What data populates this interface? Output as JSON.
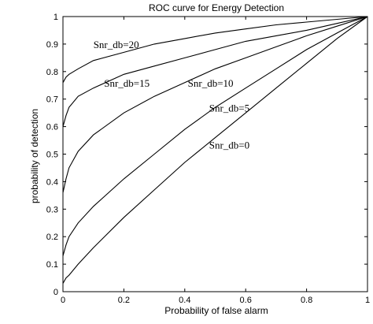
{
  "chart_data": {
    "type": "line",
    "title": "ROC curve for Energy Detection",
    "xlabel": "Probability of false alarm",
    "ylabel": "probability of detection",
    "xlim": [
      0,
      1
    ],
    "ylim": [
      0,
      1
    ],
    "xticks": [
      "0",
      "0.2",
      "0.4",
      "0.6",
      "0.8",
      "1"
    ],
    "yticks": [
      "0",
      "0.1",
      "0.2",
      "0.3",
      "0.4",
      "0.5",
      "0.6",
      "0.7",
      "0.8",
      "0.9",
      "1"
    ],
    "grid": false,
    "legend": "none",
    "series": [
      {
        "name": "Snr_db=20",
        "x": [
          0,
          0.01,
          0.02,
          0.05,
          0.1,
          0.2,
          0.3,
          0.4,
          0.5,
          0.6,
          0.7,
          0.8,
          0.9,
          1
        ],
        "y": [
          0.76,
          0.78,
          0.79,
          0.81,
          0.84,
          0.87,
          0.9,
          0.92,
          0.94,
          0.955,
          0.97,
          0.98,
          0.99,
          1
        ]
      },
      {
        "name": "Snr_db=15",
        "x": [
          0,
          0.01,
          0.02,
          0.05,
          0.1,
          0.2,
          0.3,
          0.4,
          0.5,
          0.6,
          0.7,
          0.8,
          0.9,
          1
        ],
        "y": [
          0.6,
          0.64,
          0.67,
          0.71,
          0.74,
          0.79,
          0.82,
          0.85,
          0.88,
          0.91,
          0.93,
          0.95,
          0.975,
          1
        ]
      },
      {
        "name": "Snr_db=10",
        "x": [
          0,
          0.01,
          0.02,
          0.05,
          0.1,
          0.2,
          0.3,
          0.4,
          0.5,
          0.6,
          0.7,
          0.8,
          0.9,
          1
        ],
        "y": [
          0.36,
          0.41,
          0.45,
          0.51,
          0.57,
          0.65,
          0.71,
          0.76,
          0.81,
          0.85,
          0.89,
          0.93,
          0.965,
          1
        ]
      },
      {
        "name": "Snr_db=5",
        "x": [
          0,
          0.01,
          0.02,
          0.05,
          0.1,
          0.2,
          0.3,
          0.4,
          0.5,
          0.6,
          0.7,
          0.8,
          0.9,
          1
        ],
        "y": [
          0.13,
          0.17,
          0.2,
          0.25,
          0.31,
          0.41,
          0.5,
          0.59,
          0.67,
          0.74,
          0.81,
          0.88,
          0.94,
          1
        ]
      },
      {
        "name": "Snr_db=0",
        "x": [
          0,
          0.01,
          0.02,
          0.05,
          0.1,
          0.2,
          0.3,
          0.4,
          0.5,
          0.6,
          0.7,
          0.8,
          0.9,
          1
        ],
        "y": [
          0.03,
          0.05,
          0.06,
          0.1,
          0.16,
          0.27,
          0.37,
          0.47,
          0.56,
          0.65,
          0.74,
          0.83,
          0.92,
          1
        ]
      }
    ],
    "annotations": [
      {
        "text": "Snr_db=20",
        "x": 0.1,
        "y": 0.885
      },
      {
        "text": "Snr_db=15",
        "x": 0.135,
        "y": 0.745
      },
      {
        "text": "Snr_db=10",
        "x": 0.41,
        "y": 0.745
      },
      {
        "text": "Snr_db=5",
        "x": 0.48,
        "y": 0.655
      },
      {
        "text": "Snr_db=0",
        "x": 0.48,
        "y": 0.52
      }
    ]
  }
}
